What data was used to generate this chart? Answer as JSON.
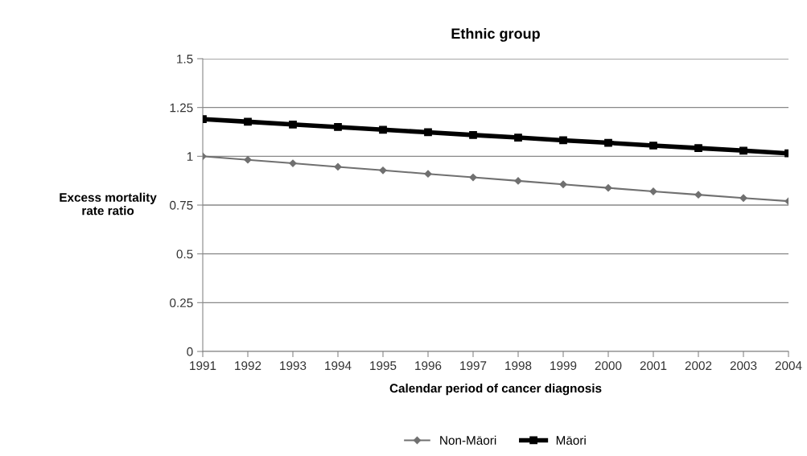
{
  "chart_data": {
    "type": "line",
    "title": "Ethnic group",
    "xlabel": "Calendar period of cancer diagnosis",
    "ylabel": "Excess mortality\nrate ratio",
    "categories": [
      "1991",
      "1992",
      "1993",
      "1994",
      "1995",
      "1996",
      "1997",
      "1998",
      "1999",
      "2000",
      "2001",
      "2002",
      "2003",
      "2004"
    ],
    "series": [
      {
        "name": "Non-Māori",
        "color": "#707070",
        "marker": "diamond",
        "values": [
          1.0,
          0.982,
          0.964,
          0.946,
          0.928,
          0.91,
          0.892,
          0.874,
          0.856,
          0.838,
          0.82,
          0.803,
          0.786,
          0.77
        ]
      },
      {
        "name": "Māori",
        "color": "#000000",
        "marker": "square",
        "values": [
          1.19,
          1.177,
          1.163,
          1.15,
          1.136,
          1.123,
          1.109,
          1.096,
          1.082,
          1.069,
          1.055,
          1.042,
          1.029,
          1.015
        ]
      }
    ],
    "ylim": [
      0,
      1.5
    ],
    "yticks": [
      0,
      0.25,
      0.5,
      0.75,
      1,
      1.25,
      1.5
    ],
    "grid": "y",
    "legend": "bottom",
    "line_style": "solid"
  }
}
